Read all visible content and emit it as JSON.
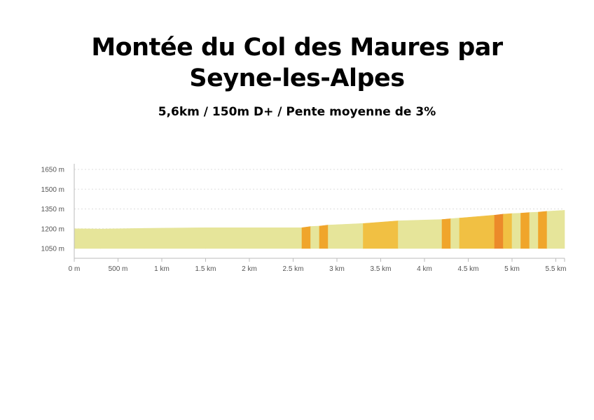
{
  "header": {
    "title_line1": "Montée du Col des Maures par",
    "title_line2": "Seyne-les-Alpes",
    "subtitle": "5,6km / 150m D+ / Pente moyenne de 3%"
  },
  "colors": {
    "pale": "#e6e59a",
    "medium": "#f1c043",
    "orange": "#f0a52b",
    "dark_orange": "#ec8a2a",
    "grid": "#dddddd",
    "axis": "#bbbbbb"
  },
  "chart_data": {
    "type": "area",
    "title": "",
    "xlabel": "",
    "ylabel": "",
    "xlim": [
      0,
      5.6
    ],
    "ylim": [
      1050,
      1650
    ],
    "x_unit": "km",
    "y_unit": "m",
    "y_ticks": [
      {
        "value": 1050,
        "label": "1050 m"
      },
      {
        "value": 1200,
        "label": "1200 m"
      },
      {
        "value": 1350,
        "label": "1350 m"
      },
      {
        "value": 1500,
        "label": "1500 m"
      },
      {
        "value": 1650,
        "label": "1650 m"
      }
    ],
    "x_ticks": [
      {
        "value": 0,
        "label": "0 m"
      },
      {
        "value": 0.5,
        "label": "500 m"
      },
      {
        "value": 1,
        "label": "1 km"
      },
      {
        "value": 1.5,
        "label": "1.5 km"
      },
      {
        "value": 2,
        "label": "2 km"
      },
      {
        "value": 2.5,
        "label": "2.5 km"
      },
      {
        "value": 3,
        "label": "3 km"
      },
      {
        "value": 3.5,
        "label": "3.5 km"
      },
      {
        "value": 4,
        "label": "4 km"
      },
      {
        "value": 4.5,
        "label": "4.5 km"
      },
      {
        "value": 5,
        "label": "5 km"
      },
      {
        "value": 5.5,
        "label": "5.5 km"
      }
    ],
    "grid": true,
    "segments": [
      {
        "x0": 0.0,
        "x1": 0.3,
        "y0": 1200,
        "y1": 1198,
        "level": "pale"
      },
      {
        "x0": 0.3,
        "x1": 0.8,
        "y0": 1198,
        "y1": 1203,
        "level": "pale"
      },
      {
        "x0": 0.8,
        "x1": 1.5,
        "y0": 1203,
        "y1": 1208,
        "level": "pale"
      },
      {
        "x0": 1.5,
        "x1": 2.0,
        "y0": 1208,
        "y1": 1208,
        "level": "pale"
      },
      {
        "x0": 2.0,
        "x1": 2.6,
        "y0": 1208,
        "y1": 1208,
        "level": "pale"
      },
      {
        "x0": 2.6,
        "x1": 2.7,
        "y0": 1208,
        "y1": 1217,
        "level": "orange"
      },
      {
        "x0": 2.7,
        "x1": 2.8,
        "y0": 1217,
        "y1": 1220,
        "level": "pale"
      },
      {
        "x0": 2.8,
        "x1": 2.9,
        "y0": 1220,
        "y1": 1228,
        "level": "orange"
      },
      {
        "x0": 2.9,
        "x1": 3.3,
        "y0": 1228,
        "y1": 1240,
        "level": "pale"
      },
      {
        "x0": 3.3,
        "x1": 3.7,
        "y0": 1240,
        "y1": 1260,
        "level": "medium"
      },
      {
        "x0": 3.7,
        "x1": 4.2,
        "y0": 1260,
        "y1": 1270,
        "level": "pale"
      },
      {
        "x0": 4.2,
        "x1": 4.3,
        "y0": 1270,
        "y1": 1276,
        "level": "orange"
      },
      {
        "x0": 4.3,
        "x1": 4.4,
        "y0": 1276,
        "y1": 1281,
        "level": "pale"
      },
      {
        "x0": 4.4,
        "x1": 4.8,
        "y0": 1281,
        "y1": 1303,
        "level": "medium"
      },
      {
        "x0": 4.8,
        "x1": 4.9,
        "y0": 1303,
        "y1": 1311,
        "level": "dark_orange"
      },
      {
        "x0": 4.9,
        "x1": 5.0,
        "y0": 1311,
        "y1": 1315,
        "level": "medium"
      },
      {
        "x0": 5.0,
        "x1": 5.1,
        "y0": 1315,
        "y1": 1318,
        "level": "pale"
      },
      {
        "x0": 5.1,
        "x1": 5.2,
        "y0": 1318,
        "y1": 1323,
        "level": "orange"
      },
      {
        "x0": 5.2,
        "x1": 5.3,
        "y0": 1323,
        "y1": 1326,
        "level": "pale"
      },
      {
        "x0": 5.3,
        "x1": 5.4,
        "y0": 1326,
        "y1": 1332,
        "level": "orange"
      },
      {
        "x0": 5.4,
        "x1": 5.6,
        "y0": 1332,
        "y1": 1340,
        "level": "pale"
      }
    ]
  }
}
